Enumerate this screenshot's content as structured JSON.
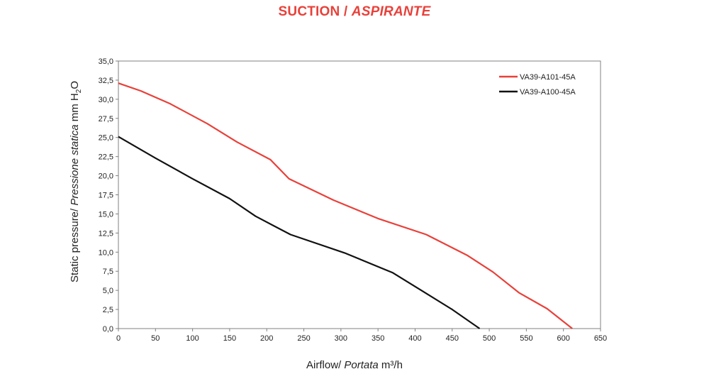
{
  "title": {
    "main": "SUCTION / ",
    "italic": "ASPIRANTE",
    "color": "#e8413a"
  },
  "chart_data": {
    "type": "line",
    "xlim": [
      0,
      650
    ],
    "ylim": [
      0,
      35
    ],
    "x_ticks": [
      0,
      50,
      100,
      150,
      200,
      250,
      300,
      350,
      400,
      450,
      500,
      550,
      600,
      650
    ],
    "y_ticks": [
      "0,0",
      "2,5",
      "5,0",
      "7,5",
      "10,0",
      "12,5",
      "15,0",
      "17,5",
      "20,0",
      "22,5",
      "25,0",
      "27,5",
      "30,0",
      "32,5",
      "35,0"
    ],
    "grid": false,
    "legend_position": "top-right",
    "xlabel": {
      "plain": "Airflow/ ",
      "italic": "Portata",
      "unit": " m³/h"
    },
    "ylabel": {
      "plain": "Static pressure/ ",
      "italic": "Pressione statica",
      "unit_pre": " mm  H",
      "unit_sub": "2",
      "unit_post": "O"
    },
    "series": [
      {
        "name": "VA39-A101-45A",
        "color": "#e8413a",
        "points": [
          [
            0,
            32.1
          ],
          [
            30,
            31.1
          ],
          [
            70,
            29.4
          ],
          [
            120,
            26.8
          ],
          [
            160,
            24.4
          ],
          [
            205,
            22.1
          ],
          [
            230,
            19.6
          ],
          [
            290,
            16.8
          ],
          [
            350,
            14.4
          ],
          [
            415,
            12.3
          ],
          [
            470,
            9.6
          ],
          [
            505,
            7.4
          ],
          [
            540,
            4.7
          ],
          [
            578,
            2.6
          ],
          [
            612,
            0
          ]
        ]
      },
      {
        "name": "VA39-A100-45A",
        "color": "#111111",
        "points": [
          [
            0,
            25.1
          ],
          [
            50,
            22.3
          ],
          [
            100,
            19.6
          ],
          [
            150,
            17.0
          ],
          [
            185,
            14.7
          ],
          [
            232,
            12.3
          ],
          [
            305,
            9.9
          ],
          [
            370,
            7.3
          ],
          [
            410,
            4.9
          ],
          [
            450,
            2.5
          ],
          [
            487,
            0
          ]
        ]
      }
    ]
  }
}
